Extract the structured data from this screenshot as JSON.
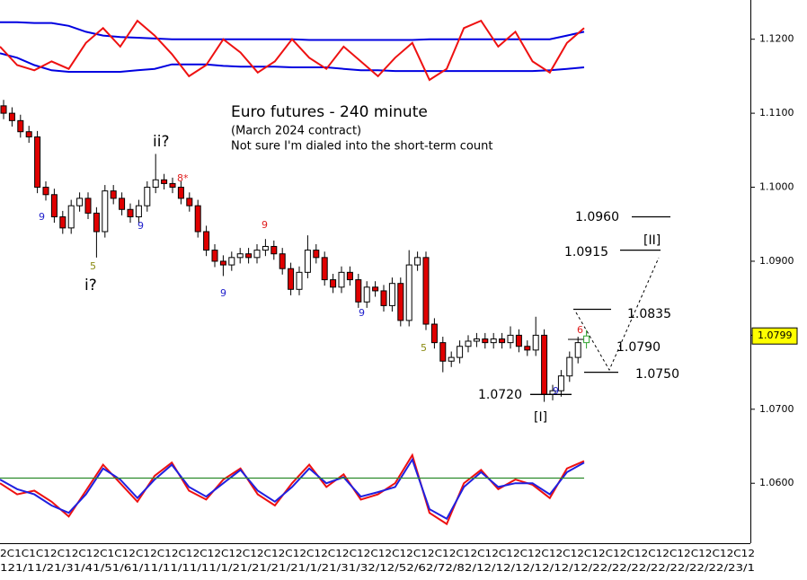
{
  "chart_data": {
    "type": "candlestick",
    "title": "Euro futures - 240 minute",
    "subtitle": "(March 2024 contract)",
    "note": "Not sure I'm dialed into the short-term count",
    "open": [
      1.111,
      1.11,
      1.109,
      1.1075,
      1.1068,
      1.1,
      1.099,
      1.096,
      1.0945,
      1.0975,
      1.0985,
      1.0965,
      1.094,
      1.0995,
      1.0985,
      1.097,
      1.096,
      1.0975,
      1.1,
      1.101,
      1.1005,
      1.1,
      1.0985,
      1.0975,
      1.094,
      1.0915,
      1.09,
      1.0895,
      1.0905,
      1.091,
      1.0905,
      1.0915,
      1.092,
      1.091,
      1.089,
      1.0862,
      1.0885,
      1.0915,
      1.0905,
      1.0875,
      1.0865,
      1.0885,
      1.0875,
      1.0845,
      1.0865,
      1.086,
      1.084,
      1.087,
      1.082,
      1.0895,
      1.0905,
      1.0815,
      1.079,
      1.0765,
      1.077,
      1.0785,
      1.0792,
      1.0795,
      1.079,
      1.0795,
      1.079,
      1.08,
      1.0785,
      1.078,
      1.08,
      1.072,
      1.0725,
      1.0745,
      1.077,
      1.079
    ],
    "high": [
      1.1118,
      1.1108,
      1.1098,
      1.1083,
      1.1076,
      1.1008,
      1.0998,
      1.0968,
      1.0983,
      1.0993,
      1.0993,
      1.0973,
      1.1003,
      1.1003,
      1.0993,
      1.0978,
      1.0983,
      1.1008,
      1.1045,
      1.1018,
      1.1013,
      1.1008,
      1.0993,
      1.0983,
      1.0948,
      1.0923,
      1.0908,
      1.0913,
      1.0918,
      1.0918,
      1.0923,
      1.093,
      1.0928,
      1.0918,
      1.0898,
      1.0893,
      1.0935,
      1.0923,
      1.0913,
      1.0883,
      1.0893,
      1.0893,
      1.0883,
      1.0873,
      1.0873,
      1.0868,
      1.0878,
      1.0878,
      1.0915,
      1.0913,
      1.0913,
      1.0823,
      1.0798,
      1.0778,
      1.0793,
      1.08,
      1.0803,
      1.0803,
      1.0803,
      1.0803,
      1.0812,
      1.0808,
      1.0793,
      1.0825,
      1.0808,
      1.0733,
      1.0753,
      1.0778,
      1.0798,
      1.0807
    ],
    "low": [
      1.1092,
      1.1082,
      1.1067,
      1.106,
      1.0992,
      1.0982,
      1.0952,
      1.0937,
      1.0937,
      1.0967,
      1.0957,
      1.0905,
      1.0932,
      1.0977,
      1.0962,
      1.0952,
      1.0952,
      1.0967,
      1.0992,
      1.0997,
      1.0992,
      1.0977,
      1.0967,
      1.0932,
      1.0907,
      1.0892,
      1.088,
      1.0887,
      1.0897,
      1.0897,
      1.0897,
      1.0907,
      1.0902,
      1.0882,
      1.0854,
      1.0854,
      1.0877,
      1.0897,
      1.0867,
      1.0857,
      1.0857,
      1.0867,
      1.0837,
      1.0837,
      1.0852,
      1.0832,
      1.0832,
      1.0812,
      1.0812,
      1.0887,
      1.0807,
      1.0782,
      1.075,
      1.0757,
      1.0762,
      1.0777,
      1.0784,
      1.0782,
      1.0782,
      1.0782,
      1.0782,
      1.0777,
      1.0772,
      1.0772,
      1.071,
      1.0712,
      1.0717,
      1.0737,
      1.0762,
      1.0782
    ],
    "close": [
      1.11,
      1.109,
      1.1075,
      1.1068,
      1.1,
      1.099,
      1.096,
      1.0945,
      1.0975,
      1.0985,
      1.0965,
      1.094,
      1.0995,
      1.0985,
      1.097,
      1.096,
      1.0975,
      1.1,
      1.101,
      1.1005,
      1.1,
      1.0985,
      1.0975,
      1.094,
      1.0915,
      1.09,
      1.0895,
      1.0905,
      1.091,
      1.0905,
      1.0915,
      1.092,
      1.091,
      1.089,
      1.0862,
      1.0885,
      1.0915,
      1.0905,
      1.0875,
      1.0865,
      1.0885,
      1.0875,
      1.0845,
      1.0865,
      1.086,
      1.084,
      1.087,
      1.082,
      1.0895,
      1.0905,
      1.0815,
      1.079,
      1.0765,
      1.077,
      1.0785,
      1.0792,
      1.0795,
      1.079,
      1.0795,
      1.079,
      1.08,
      1.0785,
      1.078,
      1.08,
      1.072,
      1.0725,
      1.0745,
      1.077,
      1.079,
      1.0799
    ],
    "up_color": "#ffffff",
    "down_color": "#e00000",
    "last_color": "#2ea32e",
    "ylim": [
      1.0519,
      1.1253
    ],
    "yticks": [
      {
        "value": 1.06,
        "label": "1.0600"
      },
      {
        "value": 1.07,
        "label": "1.0700"
      },
      {
        "value": 1.08,
        "label": "1.0800"
      },
      {
        "value": 1.09,
        "label": "1.0900"
      },
      {
        "value": 1.1,
        "label": "1.1000"
      },
      {
        "value": 1.11,
        "label": "1.1100"
      },
      {
        "value": 1.12,
        "label": "1.1200"
      }
    ],
    "last_price": {
      "value": 1.0799,
      "label": "1.0799",
      "color": "#ffff00"
    },
    "indicators": [
      {
        "name": "upper band",
        "color": "#0000e0",
        "values": [
          1.1223,
          1.1223,
          1.1222,
          1.1222,
          1.1218,
          1.121,
          1.1205,
          1.1203,
          1.1202,
          1.1201,
          1.12,
          1.12,
          1.12,
          1.12,
          1.12,
          1.12,
          1.12,
          1.12,
          1.1199,
          1.1199,
          1.1199,
          1.1199,
          1.1199,
          1.1199,
          1.1199,
          1.12,
          1.12,
          1.12,
          1.12,
          1.12,
          1.12,
          1.12,
          1.12,
          1.1205,
          1.121
        ]
      },
      {
        "name": "lower band",
        "color": "#0000e0",
        "values": [
          1.1181,
          1.1175,
          1.1165,
          1.1158,
          1.1156,
          1.1156,
          1.1156,
          1.1156,
          1.1158,
          1.116,
          1.1166,
          1.1166,
          1.1166,
          1.1164,
          1.1163,
          1.1163,
          1.1163,
          1.1162,
          1.1162,
          1.1162,
          1.116,
          1.1158,
          1.1158,
          1.1157,
          1.1157,
          1.1157,
          1.1157,
          1.1157,
          1.1157,
          1.1157,
          1.1157,
          1.1157,
          1.1158,
          1.116,
          1.1162
        ]
      },
      {
        "name": "oscillator",
        "color": "#ee1111",
        "values": [
          1.119,
          1.1165,
          1.1158,
          1.117,
          1.116,
          1.1195,
          1.1215,
          1.119,
          1.1225,
          1.1205,
          1.118,
          1.115,
          1.1165,
          1.12,
          1.1182,
          1.1155,
          1.117,
          1.12,
          1.1175,
          1.116,
          1.119,
          1.117,
          1.115,
          1.1175,
          1.1195,
          1.1145,
          1.116,
          1.1215,
          1.1225,
          1.119,
          1.121,
          1.117,
          1.1155,
          1.1195,
          1.1215
        ]
      },
      {
        "name": "stochastic k",
        "color": "#ee1111",
        "values": [
          1.06,
          1.0585,
          1.059,
          1.0575,
          1.0555,
          1.059,
          1.0625,
          1.06,
          1.0575,
          1.061,
          1.0628,
          1.059,
          1.0578,
          1.0605,
          1.062,
          1.0585,
          1.057,
          1.06,
          1.0625,
          1.0595,
          1.0612,
          1.0578,
          1.0585,
          1.06,
          1.0638,
          1.056,
          1.0545,
          1.06,
          1.0618,
          1.0592,
          1.0605,
          1.0598,
          1.058,
          1.062,
          1.063
        ]
      },
      {
        "name": "stochastic d",
        "color": "#2020e0",
        "values": [
          1.0605,
          1.0592,
          1.0585,
          1.057,
          1.056,
          1.0585,
          1.062,
          1.0605,
          1.058,
          1.0605,
          1.0625,
          1.0595,
          1.0582,
          1.06,
          1.0618,
          1.059,
          1.0575,
          1.0595,
          1.062,
          1.06,
          1.0608,
          1.0582,
          1.0588,
          1.0595,
          1.0632,
          1.0565,
          1.0552,
          1.0595,
          1.0615,
          1.0595,
          1.06,
          1.06,
          1.0585,
          1.0615,
          1.0628
        ]
      },
      {
        "name": "midline",
        "color": "#2a8a2a",
        "values": [
          1.0607,
          1.0607
        ]
      }
    ],
    "levels": [
      {
        "label": "1.0960",
        "value": 1.096
      },
      {
        "label": "1.0915",
        "value": 1.0915
      },
      {
        "label": "1.0835",
        "value": 1.0835
      },
      {
        "label": "1.0790",
        "value": 1.079
      },
      {
        "label": "1.0750",
        "value": 1.075
      },
      {
        "label": "1.0720",
        "value": 1.072
      }
    ],
    "wave_labels": [
      "ii?",
      "i?",
      "[I]",
      "[II]"
    ],
    "counts": [
      {
        "text": "9",
        "color": "#2222cc"
      },
      {
        "text": "5",
        "color": "#8a8a10"
      },
      {
        "text": "9",
        "color": "#2222cc"
      },
      {
        "text": "8*",
        "color": "#e02020"
      },
      {
        "text": "9",
        "color": "#e02020"
      },
      {
        "text": "9",
        "color": "#2222cc"
      },
      {
        "text": "9",
        "color": "#2222cc"
      },
      {
        "text": "5",
        "color": "#8a8a10"
      },
      {
        "text": "6",
        "color": "#e02020"
      },
      {
        "text": "9",
        "color": "#2222cc"
      }
    ],
    "x_axis_rows": [
      "2C1C1C12C12C12C1C12C12C12C12C12C12C12C12C12C12C12C12C12C12C12C12C12C12C12C12C12C12C12C12C12C12C12C12C12C12",
      "121/11/21/31/41/51/61/11/11/11/11/1/21/21/21/21/1/21/31/32/12/52/62/72/82/12/12/12/12/12/12/22/22/22/22/22/22/22/23/1"
    ]
  }
}
